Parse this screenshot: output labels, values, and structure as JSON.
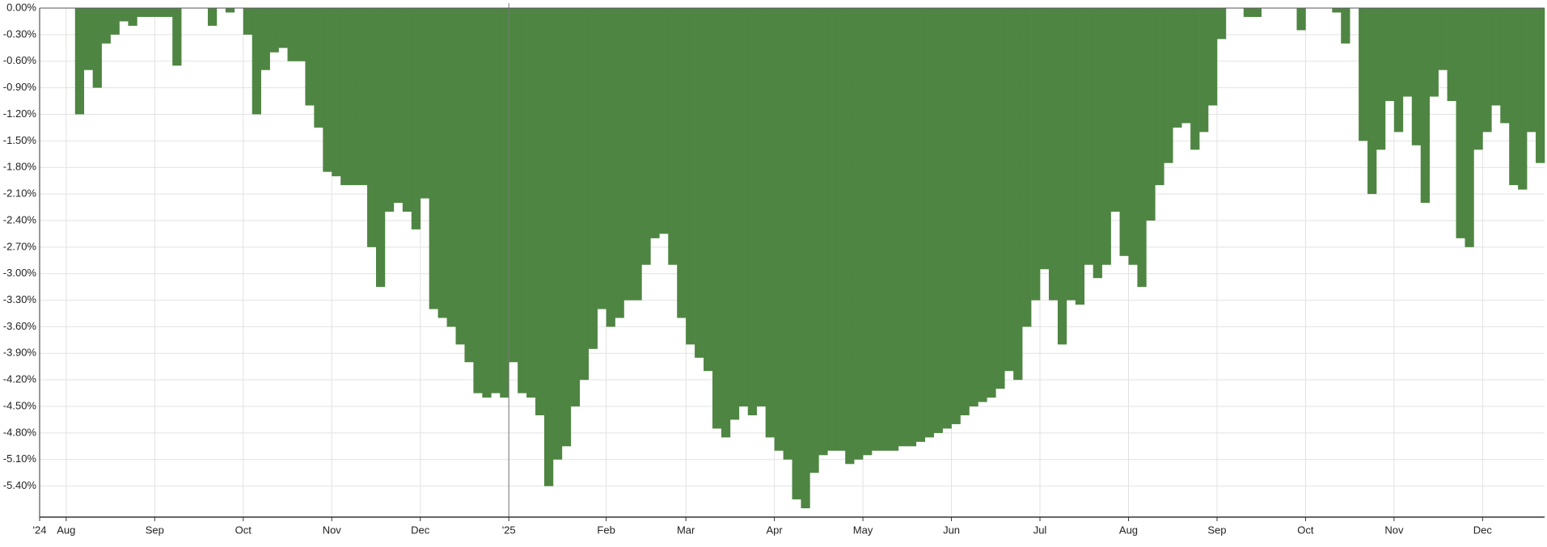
{
  "chart_data": {
    "type": "bar",
    "color": "#4e8542",
    "grid": true,
    "ylim": [
      -5.75,
      0
    ],
    "yticks": [
      {
        "value": 0,
        "label": "0.00%"
      },
      {
        "value": -0.3,
        "label": "-0.30%"
      },
      {
        "value": -0.6,
        "label": "-0.60%"
      },
      {
        "value": -0.9,
        "label": "-0.90%"
      },
      {
        "value": -1.2,
        "label": "-1.20%"
      },
      {
        "value": -1.5,
        "label": "-1.50%"
      },
      {
        "value": -1.8,
        "label": "-1.80%"
      },
      {
        "value": -2.1,
        "label": "-2.10%"
      },
      {
        "value": -2.4,
        "label": "-2.40%"
      },
      {
        "value": -2.7,
        "label": "-2.70%"
      },
      {
        "value": -3.0,
        "label": "-3.00%"
      },
      {
        "value": -3.3,
        "label": "-3.30%"
      },
      {
        "value": -3.6,
        "label": "-3.60%"
      },
      {
        "value": -3.9,
        "label": "-3.90%"
      },
      {
        "value": -4.2,
        "label": "-4.20%"
      },
      {
        "value": -4.5,
        "label": "-4.50%"
      },
      {
        "value": -4.8,
        "label": "-4.80%"
      },
      {
        "value": -5.1,
        "label": "-5.10%"
      },
      {
        "value": -5.4,
        "label": "-5.40%"
      }
    ],
    "categories": [
      "'24",
      null,
      null,
      "Aug",
      null,
      null,
      null,
      null,
      null,
      null,
      null,
      null,
      null,
      "Sep",
      null,
      null,
      null,
      null,
      null,
      null,
      null,
      null,
      null,
      "Oct",
      null,
      null,
      null,
      null,
      null,
      null,
      null,
      null,
      null,
      "Nov",
      null,
      null,
      null,
      null,
      null,
      null,
      null,
      null,
      null,
      "Dec",
      null,
      null,
      null,
      null,
      null,
      null,
      null,
      null,
      null,
      "'25",
      null,
      null,
      null,
      null,
      null,
      null,
      null,
      null,
      null,
      null,
      "Feb",
      null,
      null,
      null,
      null,
      null,
      null,
      null,
      null,
      "Mar",
      null,
      null,
      null,
      null,
      null,
      null,
      null,
      null,
      null,
      "Apr",
      null,
      null,
      null,
      null,
      null,
      null,
      null,
      null,
      null,
      "May",
      null,
      null,
      null,
      null,
      null,
      null,
      null,
      null,
      null,
      "Jun",
      null,
      null,
      null,
      null,
      null,
      null,
      null,
      null,
      null,
      "Jul",
      null,
      null,
      null,
      null,
      null,
      null,
      null,
      null,
      null,
      "Aug",
      null,
      null,
      null,
      null,
      null,
      null,
      null,
      null,
      null,
      "Sep",
      null,
      null,
      null,
      null,
      null,
      null,
      null,
      null,
      null,
      "Oct",
      null,
      null,
      null,
      null,
      null,
      null,
      null,
      null,
      null,
      "Nov",
      null,
      null,
      null,
      null,
      null,
      null,
      null,
      null,
      null,
      "Dec",
      null,
      null,
      null,
      null,
      null,
      null
    ],
    "values": [
      0,
      0,
      0,
      0,
      -1.2,
      -0.7,
      -0.9,
      -0.4,
      -0.3,
      -0.15,
      -0.2,
      -0.1,
      -0.1,
      -0.1,
      -0.1,
      -0.65,
      0,
      0,
      0,
      -0.2,
      0,
      -0.05,
      0,
      -0.3,
      -1.2,
      -0.7,
      -0.5,
      -0.45,
      -0.6,
      -0.6,
      -1.1,
      -1.35,
      -1.85,
      -1.9,
      -2.0,
      -2.0,
      -2.0,
      -2.7,
      -3.15,
      -2.3,
      -2.2,
      -2.3,
      -2.5,
      -2.15,
      -3.4,
      -3.5,
      -3.6,
      -3.8,
      -4.0,
      -4.35,
      -4.4,
      -4.35,
      -4.4,
      -4.0,
      -4.35,
      -4.4,
      -4.6,
      -5.4,
      -5.1,
      -4.95,
      -4.5,
      -4.2,
      -3.85,
      -3.4,
      -3.6,
      -3.5,
      -3.3,
      -3.3,
      -2.9,
      -2.6,
      -2.55,
      -2.9,
      -3.5,
      -3.8,
      -3.95,
      -4.1,
      -4.75,
      -4.85,
      -4.65,
      -4.5,
      -4.6,
      -4.5,
      -4.85,
      -5.0,
      -5.1,
      -5.55,
      -5.65,
      -5.25,
      -5.05,
      -5.0,
      -5.0,
      -5.15,
      -5.1,
      -5.05,
      -5.0,
      -5.0,
      -5.0,
      -4.95,
      -4.95,
      -4.9,
      -4.85,
      -4.8,
      -4.75,
      -4.7,
      -4.6,
      -4.5,
      -4.45,
      -4.4,
      -4.3,
      -4.1,
      -4.2,
      -3.6,
      -3.3,
      -2.95,
      -3.3,
      -3.8,
      -3.3,
      -3.35,
      -2.9,
      -3.05,
      -2.9,
      -2.3,
      -2.8,
      -2.9,
      -3.15,
      -2.4,
      -2.0,
      -1.75,
      -1.35,
      -1.3,
      -1.6,
      -1.4,
      -1.1,
      -0.35,
      0,
      0,
      -0.1,
      -0.1,
      0,
      0,
      0,
      0,
      -0.25,
      0,
      0,
      0,
      -0.05,
      -0.4,
      0,
      -1.5,
      -2.1,
      -1.6,
      -1.05,
      -1.4,
      -1.0,
      -1.55,
      -2.2,
      -1.0,
      -0.7,
      -1.05,
      -2.6,
      -2.7,
      -1.6,
      -1.4,
      -1.1,
      -1.3,
      -2.0,
      -2.05,
      -1.4,
      -1.75
    ]
  }
}
